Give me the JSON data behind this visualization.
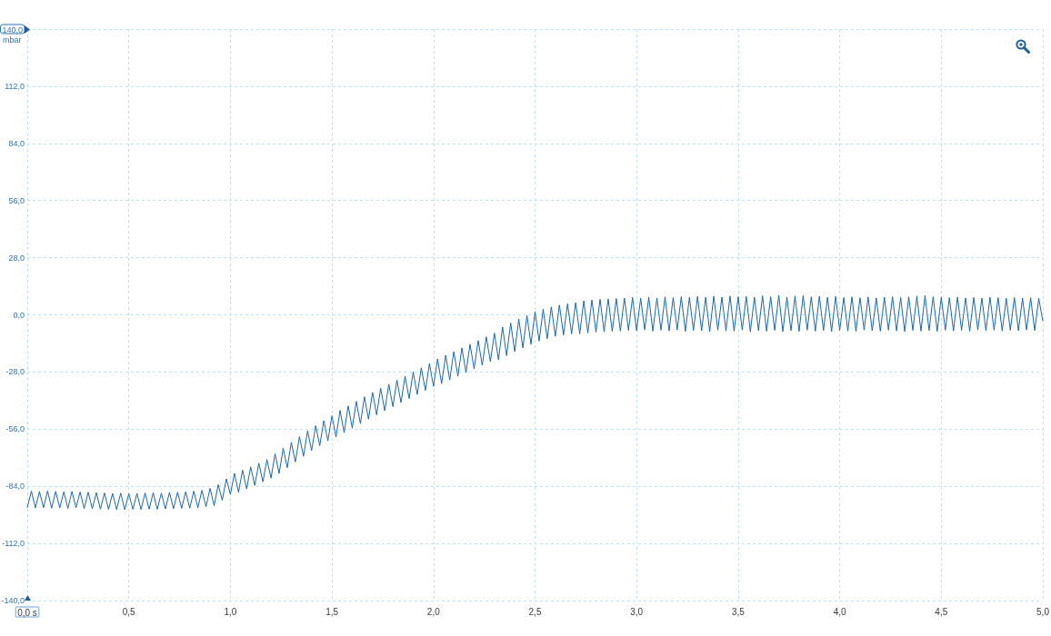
{
  "chart_data": {
    "type": "line",
    "ylabel": "mbar",
    "x": [
      0,
      0.02,
      0.04,
      0.06,
      0.08,
      0.1,
      0.12,
      0.14,
      0.16,
      0.18,
      0.2,
      0.22,
      0.24,
      0.26,
      0.28,
      0.3,
      0.32,
      0.34,
      0.36,
      0.38,
      0.4,
      0.42,
      0.44,
      0.46,
      0.48,
      0.5,
      0.52,
      0.54,
      0.56,
      0.58,
      0.6,
      0.62,
      0.64,
      0.66,
      0.68,
      0.7,
      0.72,
      0.74,
      0.76,
      0.78,
      0.8,
      0.82,
      0.84,
      0.86,
      0.88,
      0.9,
      0.92,
      0.94,
      0.96,
      0.98,
      1,
      1.02,
      1.04,
      1.06,
      1.08,
      1.1,
      1.12,
      1.14,
      1.16,
      1.18,
      1.2,
      1.22,
      1.24,
      1.26,
      1.28,
      1.3,
      1.32,
      1.34,
      1.36,
      1.38,
      1.4,
      1.42,
      1.44,
      1.46,
      1.48,
      1.5,
      1.52,
      1.54,
      1.56,
      1.58,
      1.6,
      1.62,
      1.64,
      1.66,
      1.68,
      1.7,
      1.72,
      1.74,
      1.76,
      1.78,
      1.8,
      1.82,
      1.84,
      1.86,
      1.88,
      1.9,
      1.92,
      1.94,
      1.96,
      1.98,
      2,
      2.02,
      2.04,
      2.06,
      2.08,
      2.1,
      2.12,
      2.14,
      2.16,
      2.18,
      2.2,
      2.22,
      2.24,
      2.26,
      2.28,
      2.3,
      2.32,
      2.34,
      2.36,
      2.38,
      2.4,
      2.42,
      2.44,
      2.46,
      2.48,
      2.5,
      2.52,
      2.54,
      2.56,
      2.58,
      2.6,
      2.62,
      2.64,
      2.66,
      2.68,
      2.7,
      2.72,
      2.74,
      2.76,
      2.78,
      2.8,
      2.82,
      2.84,
      2.86,
      2.88,
      2.9,
      2.92,
      2.94,
      2.96,
      2.98,
      3,
      3.02,
      3.04,
      3.06,
      3.08,
      3.1,
      3.12,
      3.14,
      3.16,
      3.18,
      3.2,
      3.22,
      3.24,
      3.26,
      3.28,
      3.3,
      3.32,
      3.34,
      3.36,
      3.38,
      3.4,
      3.42,
      3.44,
      3.46,
      3.48,
      3.5,
      3.52,
      3.54,
      3.56,
      3.58,
      3.6,
      3.62,
      3.64,
      3.66,
      3.68,
      3.7,
      3.72,
      3.74,
      3.76,
      3.78,
      3.8,
      3.82,
      3.84,
      3.86,
      3.88,
      3.9,
      3.92,
      3.94,
      3.96,
      3.98,
      4,
      4.02,
      4.04,
      4.06,
      4.08,
      4.1,
      4.12,
      4.14,
      4.16,
      4.18,
      4.2,
      4.22,
      4.24,
      4.26,
      4.28,
      4.3,
      4.32,
      4.34,
      4.36,
      4.38,
      4.4,
      4.42,
      4.44,
      4.46,
      4.48,
      4.5,
      4.52,
      4.54,
      4.56,
      4.58,
      4.6,
      4.62,
      4.64,
      4.66,
      4.68,
      4.7,
      4.72,
      4.74,
      4.76,
      4.78,
      4.8,
      4.82,
      4.84,
      4.86,
      4.88,
      4.9,
      4.92,
      4.94,
      4.96,
      4.98,
      5
    ],
    "values": [
      -94.4,
      -86.4,
      -94.6,
      -86.6,
      -94.5,
      -86.3,
      -94.7,
      -86.5,
      -94.6,
      -86.7,
      -94.8,
      -86.6,
      -94.5,
      -86.8,
      -94.9,
      -86.9,
      -95.0,
      -87.1,
      -95.2,
      -87.3,
      -95.3,
      -87.5,
      -95.4,
      -87.4,
      -95.5,
      -87.6,
      -95.3,
      -87.5,
      -95.4,
      -87.3,
      -95.2,
      -87.2,
      -95.3,
      -87.4,
      -95.1,
      -87.0,
      -95.0,
      -86.9,
      -94.8,
      -86.7,
      -94.7,
      -86.4,
      -94.5,
      -86.0,
      -94.0,
      -85.0,
      -93.6,
      -83.2,
      -90.8,
      -80.4,
      -88.0,
      -77.7,
      -86.9,
      -76.1,
      -85.3,
      -74.5,
      -83.6,
      -72.7,
      -81.8,
      -70.9,
      -80.0,
      -68.1,
      -77.7,
      -65.3,
      -74.9,
      -62.5,
      -72.1,
      -59.7,
      -69.3,
      -56.9,
      -66.5,
      -54.3,
      -64.1,
      -51.9,
      -61.7,
      -49.5,
      -59.9,
      -46.8,
      -57.7,
      -44.6,
      -55.5,
      -42.4,
      -53.3,
      -40.2,
      -51.1,
      -38.0,
      -49.0,
      -36.0,
      -47.0,
      -34.0,
      -45.0,
      -32.0,
      -43.0,
      -30.0,
      -41.0,
      -28.0,
      -39.0,
      -26.0,
      -37.0,
      -24.0,
      -35.0,
      -21.6,
      -33.7,
      -19.8,
      -31.9,
      -18.0,
      -30.1,
      -16.2,
      -28.3,
      -14.4,
      -26.5,
      -12.6,
      -24.7,
      -10.8,
      -22.9,
      -9.0,
      -22.0,
      -6.0,
      -20.0,
      -4.0,
      -18.0,
      -2.1,
      -16.2,
      -0.3,
      -14.4,
      1.5,
      -12.9,
      2.7,
      -11.7,
      3.9,
      -10.5,
      4.8,
      -9.9,
      5.4,
      -9.3,
      6.0,
      -9.3,
      6.9,
      -8.9,
      7.3,
      -8.5,
      7.6,
      -8.3,
      7.8,
      -8.1,
      8.0,
      -7.9,
      8.2,
      -7.6,
      8.5,
      -7.8,
      8.1,
      -7.4,
      8.6,
      -8.0,
      8.3,
      -7.5,
      8.8,
      -7.9,
      8.4,
      -7.3,
      8.9,
      -8.1,
      8.5,
      -7.6,
      9.0,
      -7.8,
      8.6,
      -8.2,
      9.1,
      -7.5,
      8.7,
      -7.9,
      9.2,
      -8.0,
      8.8,
      -7.4,
      9.0,
      -8.3,
      8.6,
      -7.7,
      9.3,
      -8.0,
      8.9,
      -7.6,
      9.6,
      -8.2,
      8.7,
      -7.8,
      9.2,
      -8.1,
      9.4,
      -7.5,
      8.8,
      -8.0,
      9.1,
      -7.7,
      8.6,
      -8.2,
      9.0,
      -7.6,
      8.5,
      -7.9,
      8.8,
      -8.1,
      8.4,
      -7.4,
      8.7,
      -7.8,
      8.3,
      -8.0,
      8.6,
      -7.5,
      8.9,
      -7.9,
      8.5,
      -8.2,
      8.8,
      -7.6,
      9.2,
      -8.0,
      9.4,
      -7.7,
      8.9,
      -8.1,
      8.6,
      -7.5,
      8.4,
      -7.9,
      8.7,
      -7.6,
      8.3,
      -8.0,
      8.5,
      -7.4,
      8.2,
      -7.8,
      8.6,
      -7.5,
      8.4,
      -7.9,
      8.1,
      -7.6,
      8.5,
      -7.8,
      8.2,
      -7.4,
      8.4,
      -7.7,
      8.0,
      -3.0
    ],
    "color": "#1a68b3",
    "xlim": [
      0,
      5
    ],
    "ylim": [
      -140,
      140
    ],
    "xticks": [
      {
        "value": 0,
        "label": "0,0 s"
      },
      {
        "value": 0.5,
        "label": "0,5"
      },
      {
        "value": 1,
        "label": "1,0"
      },
      {
        "value": 1.5,
        "label": "1,5"
      },
      {
        "value": 2,
        "label": "2,0"
      },
      {
        "value": 2.5,
        "label": "2,5"
      },
      {
        "value": 3,
        "label": "3,0"
      },
      {
        "value": 3.5,
        "label": "3,5"
      },
      {
        "value": 4,
        "label": "4,0"
      },
      {
        "value": 4.5,
        "label": "4,5"
      },
      {
        "value": 5,
        "label": "5,0"
      }
    ],
    "yticks": [
      {
        "value": -140,
        "label": "-140,0"
      },
      {
        "value": -112,
        "label": "-112,0"
      },
      {
        "value": -84,
        "label": "-84,0"
      },
      {
        "value": -56,
        "label": "-56,0"
      },
      {
        "value": -28,
        "label": "-28,0"
      },
      {
        "value": 0,
        "label": "0,0"
      },
      {
        "value": 28,
        "label": "28,0"
      },
      {
        "value": 56,
        "label": "56,0"
      },
      {
        "value": 84,
        "label": "84,0"
      },
      {
        "value": 112,
        "label": "112,0"
      },
      {
        "value": 140,
        "label": "140,0"
      }
    ],
    "grid": true
  }
}
